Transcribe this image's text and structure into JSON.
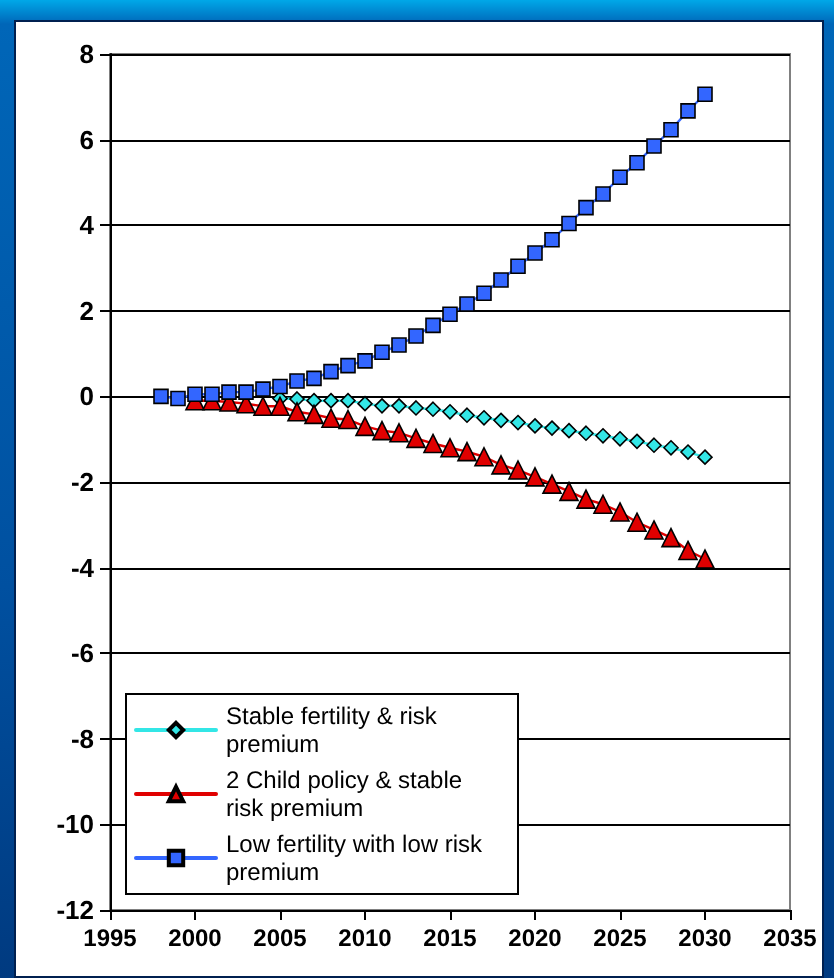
{
  "chart_data": {
    "type": "line",
    "x": [
      1998,
      1999,
      2000,
      2001,
      2002,
      2003,
      2004,
      2005,
      2006,
      2007,
      2008,
      2009,
      2010,
      2011,
      2012,
      2013,
      2014,
      2015,
      2016,
      2017,
      2018,
      2019,
      2020,
      2021,
      2022,
      2023,
      2024,
      2025,
      2026,
      2027,
      2028,
      2029,
      2030
    ],
    "series": [
      {
        "name": "Stable fertility & risk premium",
        "color": "#33e6e6",
        "marker": "diamond",
        "values": [
          null,
          null,
          null,
          null,
          null,
          null,
          null,
          -0.05,
          -0.06,
          -0.1,
          -0.1,
          -0.1,
          -0.17,
          -0.22,
          -0.22,
          -0.27,
          -0.3,
          -0.36,
          -0.44,
          -0.5,
          -0.56,
          -0.61,
          -0.69,
          -0.74,
          -0.8,
          -0.86,
          -0.92,
          -0.99,
          -1.05,
          -1.14,
          -1.2,
          -1.3,
          -1.42
        ]
      },
      {
        "name": "2 Child policy & stable risk premium",
        "color": "#e00000",
        "marker": "triangle",
        "values": [
          null,
          null,
          -0.1,
          -0.1,
          -0.13,
          -0.17,
          -0.23,
          -0.23,
          -0.36,
          -0.42,
          -0.51,
          -0.54,
          -0.7,
          -0.8,
          -0.85,
          -0.98,
          -1.1,
          -1.2,
          -1.29,
          -1.41,
          -1.6,
          -1.72,
          -1.88,
          -2.05,
          -2.22,
          -2.4,
          -2.52,
          -2.7,
          -2.94,
          -3.12,
          -3.3,
          -3.6,
          -3.8
        ]
      },
      {
        "name": "Low fertility with low risk premium",
        "color": "#3366ff",
        "marker": "square",
        "values": [
          0,
          -0.05,
          0.05,
          0.05,
          0.1,
          0.1,
          0.17,
          0.23,
          0.36,
          0.42,
          0.58,
          0.72,
          0.83,
          1.03,
          1.2,
          1.41,
          1.66,
          1.92,
          2.16,
          2.41,
          2.72,
          3.04,
          3.35,
          3.66,
          4.04,
          4.41,
          4.73,
          5.12,
          5.46,
          5.85,
          6.23,
          6.67,
          7.06
        ]
      }
    ],
    "xlim": [
      1995,
      2035
    ],
    "xticks": [
      1995,
      2000,
      2005,
      2010,
      2015,
      2020,
      2025,
      2030,
      2035
    ],
    "ylim": [
      -12,
      8
    ],
    "yticks": [
      -12,
      -10,
      -8,
      -6,
      -4,
      -2,
      0,
      2,
      4,
      6,
      8
    ],
    "grid": "y",
    "legend": "bottom left",
    "line_style": "solid"
  }
}
